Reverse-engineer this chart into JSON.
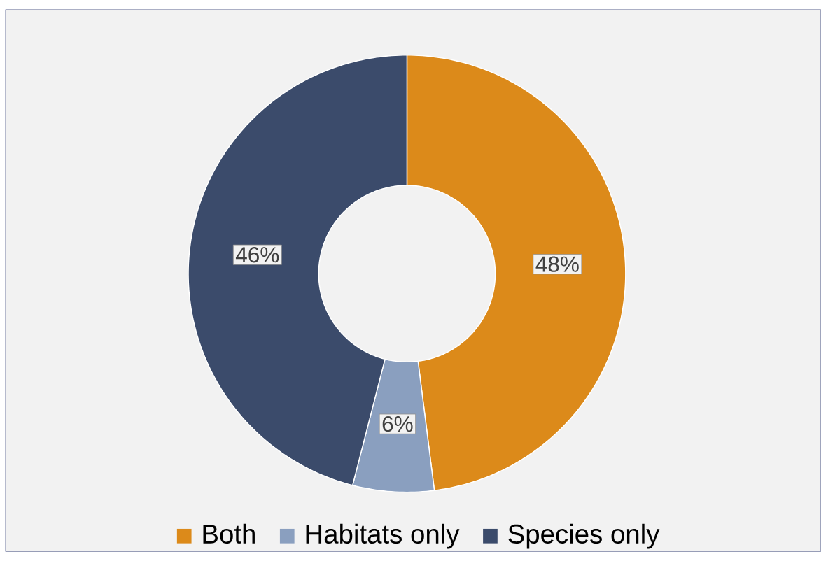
{
  "chart_data": {
    "type": "donut",
    "categories": [
      "Both",
      "Habitats only",
      "Species only"
    ],
    "values": [
      48,
      6,
      46
    ],
    "colors": [
      "#dc8a1a",
      "#8a9fbf",
      "#3b4b6b"
    ],
    "value_labels": [
      "48%",
      "6%",
      "46%"
    ],
    "legend": "bottom"
  }
}
